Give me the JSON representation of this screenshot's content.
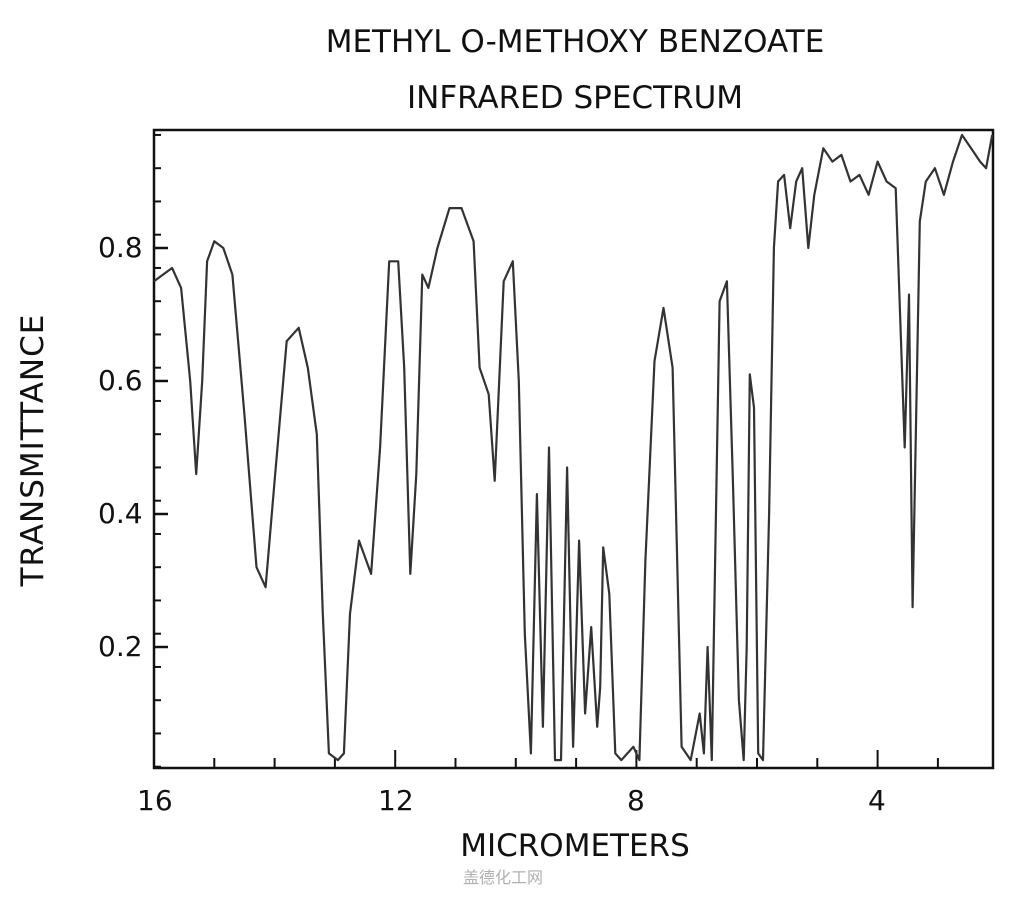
{
  "chart_data": {
    "type": "line",
    "title": "METHYL O-METHOXY BENZOATE",
    "subtitle": "INFRARED SPECTRUM",
    "xlabel": "MICROMETERS",
    "ylabel": "TRANSMITTANCE",
    "xlim": [
      16,
      2.1
    ],
    "ylim": [
      0.02,
      0.98
    ],
    "x_reversed": true,
    "grid": false,
    "legend": null,
    "xticks": [
      "16",
      "12",
      "8",
      "4"
    ],
    "yticks": [
      "0.8",
      "0.6",
      "0.4",
      "0.2"
    ],
    "series": [
      {
        "name": "Methyl o-methoxy benzoate IR",
        "x": [
          16.0,
          15.85,
          15.7,
          15.55,
          15.4,
          15.3,
          15.2,
          15.12,
          15.0,
          14.85,
          14.7,
          14.5,
          14.3,
          14.15,
          14.0,
          13.8,
          13.6,
          13.45,
          13.3,
          13.2,
          13.1,
          12.95,
          12.85,
          12.75,
          12.6,
          12.4,
          12.25,
          12.1,
          11.95,
          11.85,
          11.75,
          11.65,
          11.55,
          11.45,
          11.3,
          11.1,
          10.9,
          10.7,
          10.6,
          10.45,
          10.35,
          10.2,
          10.05,
          9.95,
          9.85,
          9.75,
          9.65,
          9.55,
          9.45,
          9.35,
          9.25,
          9.15,
          9.05,
          8.95,
          8.85,
          8.75,
          8.65,
          8.6,
          8.55,
          8.45,
          8.35,
          8.25,
          8.15,
          8.05,
          7.95,
          7.85,
          7.7,
          7.55,
          7.4,
          7.25,
          7.1,
          6.95,
          6.88,
          6.82,
          6.75,
          6.7,
          6.62,
          6.5,
          6.4,
          6.3,
          6.22,
          6.17,
          6.12,
          6.05,
          5.98,
          5.9,
          5.8,
          5.72,
          5.65,
          5.55,
          5.45,
          5.35,
          5.25,
          5.15,
          5.05,
          4.9,
          4.75,
          4.6,
          4.45,
          4.3,
          4.15,
          4.0,
          3.85,
          3.7,
          3.55,
          3.48,
          3.42,
          3.36,
          3.3,
          3.2,
          3.05,
          2.9,
          2.75,
          2.6,
          2.45,
          2.3,
          2.2,
          2.1
        ],
        "y": [
          0.75,
          0.76,
          0.77,
          0.74,
          0.6,
          0.46,
          0.6,
          0.78,
          0.81,
          0.8,
          0.76,
          0.55,
          0.32,
          0.29,
          0.45,
          0.66,
          0.68,
          0.62,
          0.52,
          0.25,
          0.04,
          0.03,
          0.04,
          0.25,
          0.36,
          0.31,
          0.5,
          0.78,
          0.78,
          0.62,
          0.31,
          0.46,
          0.76,
          0.74,
          0.8,
          0.86,
          0.86,
          0.81,
          0.62,
          0.58,
          0.45,
          0.75,
          0.78,
          0.6,
          0.22,
          0.04,
          0.43,
          0.08,
          0.5,
          0.03,
          0.03,
          0.47,
          0.05,
          0.36,
          0.1,
          0.23,
          0.08,
          0.14,
          0.35,
          0.28,
          0.04,
          0.03,
          0.04,
          0.05,
          0.03,
          0.33,
          0.63,
          0.71,
          0.62,
          0.05,
          0.03,
          0.1,
          0.04,
          0.2,
          0.03,
          0.3,
          0.72,
          0.75,
          0.45,
          0.12,
          0.03,
          0.2,
          0.61,
          0.56,
          0.04,
          0.03,
          0.4,
          0.8,
          0.9,
          0.91,
          0.83,
          0.9,
          0.92,
          0.8,
          0.88,
          0.95,
          0.93,
          0.94,
          0.9,
          0.91,
          0.88,
          0.93,
          0.9,
          0.89,
          0.5,
          0.73,
          0.26,
          0.55,
          0.84,
          0.9,
          0.92,
          0.88,
          0.93,
          0.97,
          0.95,
          0.93,
          0.92,
          0.97
        ]
      }
    ]
  },
  "watermark": "盖德化工网"
}
